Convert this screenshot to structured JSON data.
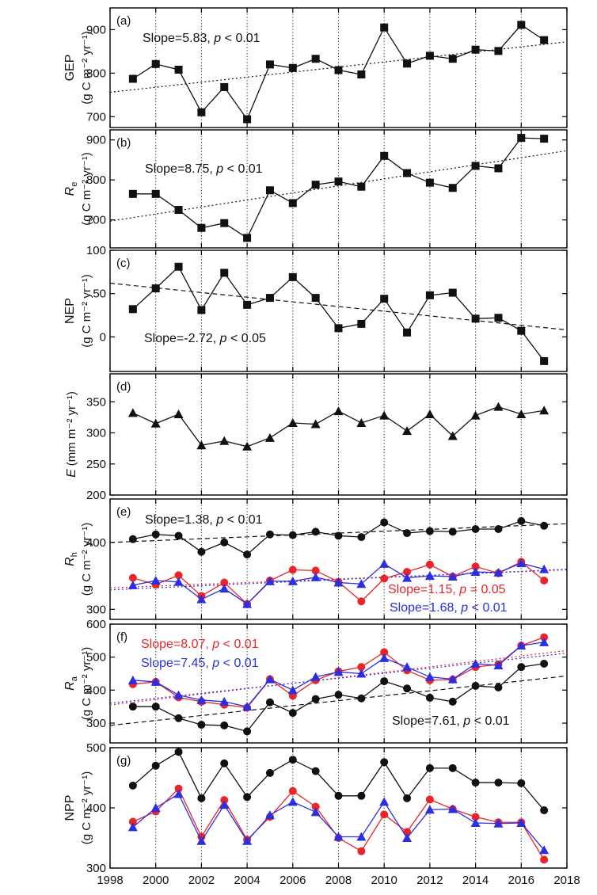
{
  "colors": {
    "black": "#111111",
    "red": "#e8262a",
    "blue": "#2b2fe0"
  },
  "x_axis": {
    "xlim": [
      1998,
      2018
    ],
    "ticks": [
      1998,
      2000,
      2002,
      2004,
      2006,
      2008,
      2010,
      2012,
      2014,
      2016,
      2018
    ],
    "tick_labels": [
      "1998",
      "2000",
      "2002",
      "2004",
      "2006",
      "2008",
      "2010",
      "2012",
      "2014",
      "2016",
      "2018"
    ],
    "dotted_gridlines_at": [
      2000,
      2002,
      2004,
      2006,
      2008,
      2010,
      2012,
      2014,
      2016
    ]
  },
  "chart_data": [
    {
      "type": "line",
      "panel_label": "(a)",
      "ylabel_main": "GEP",
      "ylabel_sub": "",
      "ylabel_italic": false,
      "yunit": "(g C m⁻² yr⁻¹)",
      "ylim": [
        675,
        950
      ],
      "yticks": [
        700,
        800,
        900
      ],
      "ytick_labels": [
        "700",
        "800",
        "900"
      ],
      "x": [
        1999,
        2000,
        2001,
        2002,
        2003,
        2004,
        2005,
        2006,
        2007,
        2008,
        2009,
        2010,
        2011,
        2012,
        2013,
        2014,
        2015,
        2016,
        2017
      ],
      "series": [
        {
          "name": "GEP",
          "color": "black",
          "marker": "square",
          "values": [
            787,
            821,
            808,
            710,
            768,
            694,
            820,
            812,
            833,
            807,
            797,
            905,
            822,
            840,
            833,
            854,
            851,
            911,
            876
          ],
          "trend": [
            756,
            872
          ],
          "trend_style": "dotted"
        }
      ],
      "annotations": [
        {
          "text": "Slope=5.83, p < 0.01",
          "color": "black"
        }
      ]
    },
    {
      "type": "line",
      "panel_label": "(b)",
      "ylabel_main": "R",
      "ylabel_sub": "e",
      "ylabel_italic": true,
      "yunit": "(g C m⁻² yr⁻¹)",
      "ylim": [
        630,
        925
      ],
      "yticks": [
        700,
        800,
        900
      ],
      "ytick_labels": [
        "700",
        "800",
        "900"
      ],
      "x": [
        1999,
        2000,
        2001,
        2002,
        2003,
        2004,
        2005,
        2006,
        2007,
        2008,
        2009,
        2010,
        2011,
        2012,
        2013,
        2014,
        2015,
        2016,
        2017
      ],
      "series": [
        {
          "name": "Re",
          "color": "black",
          "marker": "square",
          "values": [
            765,
            765,
            725,
            680,
            692,
            655,
            774,
            742,
            788,
            796,
            783,
            860,
            817,
            793,
            780,
            835,
            829,
            905,
            903
          ],
          "trend": [
            697,
            873
          ],
          "trend_style": "dotted"
        }
      ],
      "annotations": [
        {
          "text": "Slope=8.75, p < 0.01",
          "color": "black"
        }
      ]
    },
    {
      "type": "line",
      "panel_label": "(c)",
      "ylabel_main": "NEP",
      "ylabel_sub": "",
      "ylabel_italic": false,
      "yunit": "(g C m⁻² yr⁻¹)",
      "ylim": [
        -40,
        100
      ],
      "yticks": [
        0,
        50,
        100
      ],
      "ytick_labels": [
        "0",
        "50",
        "100"
      ],
      "x": [
        1999,
        2000,
        2001,
        2002,
        2003,
        2004,
        2005,
        2006,
        2007,
        2008,
        2009,
        2010,
        2011,
        2012,
        2013,
        2014,
        2015,
        2016,
        2017
      ],
      "series": [
        {
          "name": "NEP",
          "color": "black",
          "marker": "square",
          "values": [
            32,
            56,
            81,
            31,
            74,
            37,
            45,
            69,
            45,
            10,
            15,
            44,
            5,
            48,
            51,
            21,
            22,
            7,
            -28
          ],
          "trend": [
            62,
            8
          ],
          "trend_style": "dashed"
        }
      ],
      "annotations": [
        {
          "text": "Slope=-2.72, p < 0.05",
          "color": "black"
        }
      ]
    },
    {
      "type": "line",
      "panel_label": "(d)",
      "ylabel_main": "E",
      "ylabel_sub": "",
      "ylabel_italic": true,
      "yunit": "(mm m⁻² yr⁻¹)",
      "ylim": [
        200,
        395
      ],
      "yticks": [
        200,
        250,
        300,
        350
      ],
      "ytick_labels": [
        "200",
        "250",
        "300",
        "350"
      ],
      "x": [
        1999,
        2000,
        2001,
        2002,
        2003,
        2004,
        2005,
        2006,
        2007,
        2008,
        2009,
        2010,
        2011,
        2012,
        2013,
        2014,
        2015,
        2016,
        2017
      ],
      "series": [
        {
          "name": "E",
          "color": "black",
          "marker": "triangle",
          "values": [
            332,
            315,
            330,
            280,
            287,
            278,
            292,
            316,
            314,
            335,
            316,
            328,
            303,
            330,
            295,
            328,
            342,
            330,
            336
          ],
          "trend": null,
          "trend_style": null
        }
      ],
      "annotations": []
    },
    {
      "type": "line",
      "panel_label": "(e)",
      "ylabel_main": "R",
      "ylabel_sub": "h",
      "ylabel_italic": true,
      "yunit": "(g C m⁻² yr⁻¹)",
      "ylim": [
        285,
        465
      ],
      "yticks": [
        300,
        400
      ],
      "ytick_labels": [
        "300",
        "400"
      ],
      "x": [
        1999,
        2000,
        2001,
        2002,
        2003,
        2004,
        2005,
        2006,
        2007,
        2008,
        2009,
        2010,
        2011,
        2012,
        2013,
        2014,
        2015,
        2016,
        2017
      ],
      "series": [
        {
          "name": "Rh black",
          "color": "black",
          "marker": "circle",
          "values": [
            405,
            412,
            410,
            386,
            400,
            382,
            412,
            411,
            416,
            410,
            408,
            430,
            414,
            417,
            416,
            420,
            420,
            432,
            425
          ],
          "trend": [
            400,
            428
          ],
          "trend_style": "dashed"
        },
        {
          "name": "Rh red",
          "color": "red",
          "marker": "circle",
          "values": [
            347,
            337,
            351,
            320,
            340,
            308,
            343,
            359,
            358,
            341,
            312,
            346,
            356,
            367,
            349,
            364,
            354,
            371,
            343
          ],
          "trend": [
            332,
            359
          ],
          "trend_style": "dotted"
        },
        {
          "name": "Rh blue",
          "color": "blue",
          "marker": "triangle",
          "values": [
            336,
            343,
            341,
            315,
            331,
            308,
            342,
            342,
            348,
            340,
            338,
            368,
            347,
            350,
            349,
            356,
            355,
            369,
            360
          ],
          "trend": [
            329,
            360
          ],
          "trend_style": "dotted"
        }
      ],
      "annotations": [
        {
          "text": "Slope=1.38, p < 0.01",
          "color": "black"
        },
        {
          "text": "Slope=1.15, p = 0.05",
          "color": "red"
        },
        {
          "text": "Slope=1.68, p < 0.01",
          "color": "blue"
        }
      ]
    },
    {
      "type": "line",
      "panel_label": "(f)",
      "ylabel_main": "R",
      "ylabel_sub": "a",
      "ylabel_italic": true,
      "yunit": "(g C m⁻² yr⁻¹)",
      "ylim": [
        240,
        600
      ],
      "yticks": [
        300,
        400,
        500,
        600
      ],
      "ytick_labels": [
        "300",
        "400",
        "500",
        "600"
      ],
      "x": [
        1999,
        2000,
        2001,
        2002,
        2003,
        2004,
        2005,
        2006,
        2007,
        2008,
        2009,
        2010,
        2011,
        2012,
        2013,
        2014,
        2015,
        2016,
        2017
      ],
      "series": [
        {
          "name": "Ra black",
          "color": "black",
          "marker": "circle",
          "values": [
            350,
            350,
            315,
            295,
            293,
            275,
            363,
            331,
            373,
            386,
            375,
            427,
            405,
            377,
            365,
            413,
            408,
            470,
            480
          ],
          "trend": [
            293,
            443
          ],
          "trend_style": "dashed"
        },
        {
          "name": "Ra red",
          "color": "red",
          "marker": "circle",
          "values": [
            418,
            425,
            378,
            365,
            356,
            347,
            433,
            383,
            430,
            457,
            470,
            515,
            460,
            430,
            432,
            470,
            478,
            535,
            560
          ],
          "trend": [
            355,
            520
          ],
          "trend_style": "dotted"
        },
        {
          "name": "Ra blue",
          "color": "blue",
          "marker": "triangle",
          "values": [
            430,
            425,
            385,
            370,
            365,
            350,
            433,
            400,
            440,
            455,
            450,
            497,
            470,
            440,
            433,
            480,
            475,
            535,
            545
          ],
          "trend": [
            360,
            512
          ],
          "trend_style": "dotted"
        }
      ],
      "annotations": [
        {
          "text": "Slope=8.07, p < 0.01",
          "color": "red"
        },
        {
          "text": "Slope=7.45, p < 0.01",
          "color": "blue"
        },
        {
          "text": "Slope=7.61, p < 0.01",
          "color": "black"
        }
      ]
    },
    {
      "type": "line",
      "panel_label": "(g)",
      "ylabel_main": "NPP",
      "ylabel_sub": "",
      "ylabel_italic": false,
      "yunit": "(g C m⁻² yr⁻¹)",
      "ylim": [
        300,
        500
      ],
      "yticks": [
        300,
        400,
        500
      ],
      "ytick_labels": [
        "300",
        "400",
        "500"
      ],
      "x": [
        1999,
        2000,
        2001,
        2002,
        2003,
        2004,
        2005,
        2006,
        2007,
        2008,
        2009,
        2010,
        2011,
        2012,
        2013,
        2014,
        2015,
        2016,
        2017
      ],
      "series": [
        {
          "name": "NPP black",
          "color": "black",
          "marker": "circle",
          "values": [
            437,
            470,
            493,
            416,
            474,
            418,
            458,
            480,
            461,
            420,
            420,
            476,
            416,
            466,
            466,
            442,
            442,
            441,
            396
          ],
          "trend": null,
          "trend_style": null
        },
        {
          "name": "NPP red",
          "color": "red",
          "marker": "circle",
          "values": [
            377,
            394,
            432,
            352,
            413,
            347,
            385,
            428,
            402,
            350,
            328,
            389,
            360,
            414,
            398,
            385,
            376,
            376,
            314
          ],
          "trend": null,
          "trend_style": null
        },
        {
          "name": "NPP blue",
          "color": "blue",
          "marker": "triangle",
          "values": [
            368,
            400,
            423,
            345,
            405,
            345,
            388,
            410,
            393,
            352,
            352,
            410,
            350,
            397,
            398,
            375,
            374,
            375,
            330
          ],
          "trend": null,
          "trend_style": null
        }
      ],
      "annotations": []
    }
  ]
}
